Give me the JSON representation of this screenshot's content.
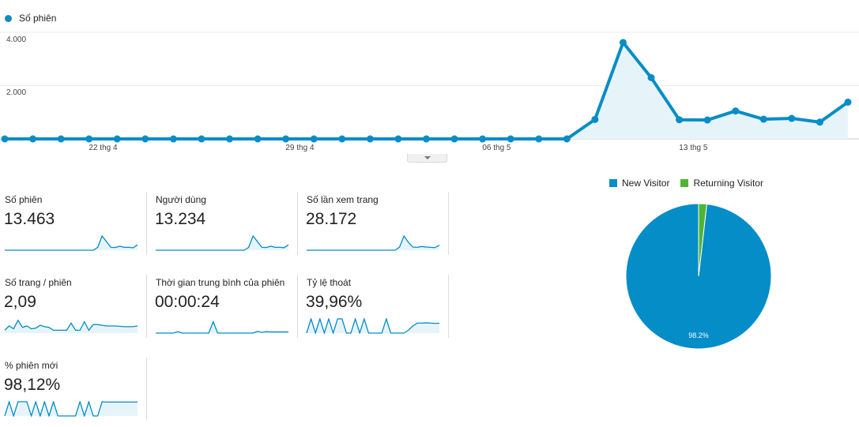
{
  "chart_data": [
    {
      "type": "line",
      "series": [
        {
          "name": "Số phiên",
          "values": [
            0,
            0,
            0,
            0,
            0,
            0,
            0,
            0,
            0,
            0,
            0,
            0,
            0,
            0,
            0,
            0,
            0,
            0,
            0,
            0,
            0,
            730,
            3620,
            2300,
            720,
            710,
            1050,
            740,
            770,
            630,
            1380
          ]
        }
      ],
      "x_labels": [
        {
          "index": 3.5,
          "label": "22 thg 4"
        },
        {
          "index": 10.5,
          "label": "29 thg 4"
        },
        {
          "index": 17.5,
          "label": "06 thg 5"
        },
        {
          "index": 24.5,
          "label": "13 thg 5"
        }
      ],
      "y_ticks": [
        "2.000",
        "4.000"
      ],
      "y_tick_values": [
        2000,
        4000
      ],
      "ylim": [
        0,
        4000
      ],
      "color": "#058dc7"
    },
    {
      "type": "pie",
      "slices": [
        {
          "label": "New Visitor",
          "value": 98.2,
          "color": "#058dc7"
        },
        {
          "label": "Returning Visitor",
          "value": 1.8,
          "color": "#50b432"
        }
      ],
      "data_label": "98.2%",
      "legend": "top"
    }
  ],
  "metrics": [
    {
      "label": "Số phiên",
      "value": "13.463",
      "spark": [
        0,
        0,
        0,
        0,
        0,
        0,
        0,
        0,
        0,
        0,
        0,
        0,
        0,
        0,
        0,
        0,
        0,
        0,
        0,
        0,
        0,
        20,
        100,
        60,
        20,
        19,
        28,
        20,
        21,
        17,
        38
      ]
    },
    {
      "label": "Người dùng",
      "value": "13.234",
      "spark": [
        0,
        0,
        0,
        0,
        0,
        0,
        0,
        0,
        0,
        0,
        0,
        0,
        0,
        0,
        0,
        0,
        0,
        0,
        0,
        0,
        0,
        20,
        100,
        60,
        20,
        19,
        28,
        20,
        21,
        17,
        38
      ]
    },
    {
      "label": "Số lần xem trang",
      "value": "28.172",
      "spark": [
        0,
        0,
        0,
        0,
        0,
        0,
        0,
        0,
        0,
        0,
        0,
        0,
        0,
        0,
        0,
        0,
        0,
        0,
        0,
        0,
        0,
        22,
        100,
        55,
        22,
        20,
        26,
        22,
        20,
        18,
        36
      ]
    },
    {
      "label": "Số trang / phiên",
      "value": "2,09",
      "spark": [
        20,
        50,
        30,
        90,
        40,
        50,
        30,
        35,
        55,
        45,
        40,
        20,
        20,
        20,
        20,
        70,
        20,
        20,
        80,
        20,
        60,
        60,
        55,
        50,
        50,
        50,
        48,
        45,
        45,
        45,
        50
      ]
    },
    {
      "label": "Thời gian trung bình của phiên",
      "value": "00:00:24",
      "spark": [
        0,
        0,
        0,
        0,
        0,
        10,
        0,
        0,
        0,
        0,
        0,
        0,
        0,
        80,
        0,
        0,
        0,
        0,
        0,
        0,
        0,
        0,
        0,
        12,
        5,
        10,
        8,
        8,
        8,
        8,
        8
      ]
    },
    {
      "label": "Tỷ lệ thoát",
      "value": "39,96%",
      "spark": [
        0,
        100,
        0,
        100,
        0,
        100,
        0,
        100,
        100,
        0,
        0,
        100,
        0,
        100,
        0,
        0,
        0,
        0,
        100,
        0,
        0,
        0,
        0,
        20,
        50,
        70,
        70,
        72,
        70,
        68,
        70
      ]
    },
    {
      "label": "% phiên mới",
      "value": "98,12%",
      "spark": [
        0,
        100,
        0,
        100,
        100,
        100,
        0,
        100,
        0,
        100,
        0,
        100,
        0,
        0,
        0,
        0,
        0,
        100,
        0,
        100,
        0,
        0,
        100,
        98,
        98,
        98,
        98,
        98,
        98,
        98,
        98
      ]
    }
  ]
}
